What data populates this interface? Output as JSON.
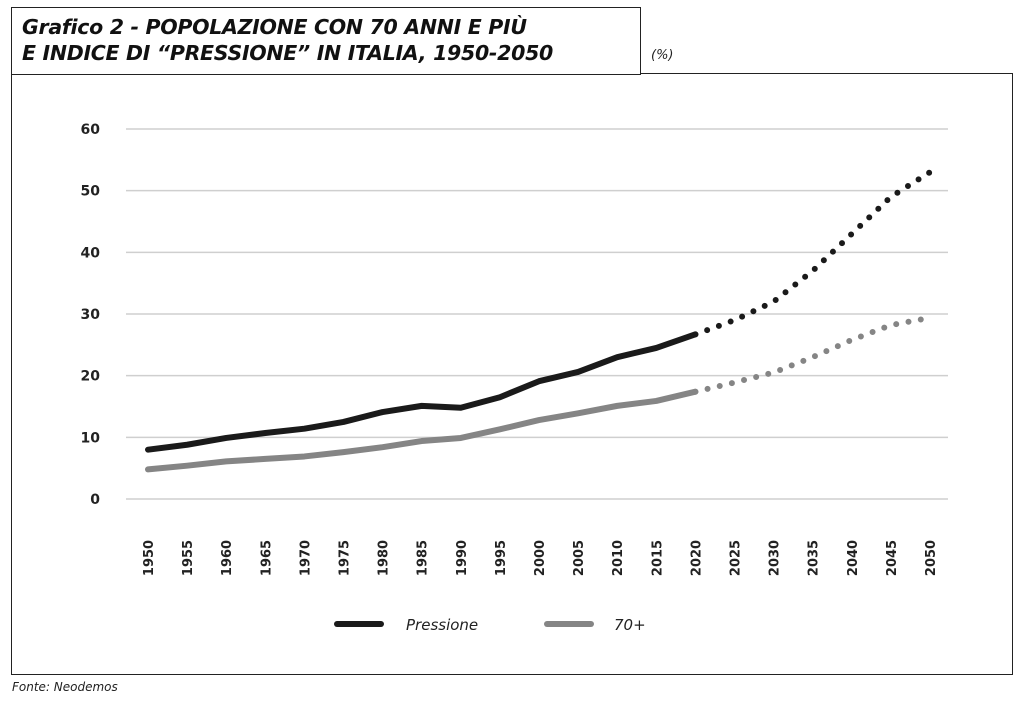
{
  "title_line1": "Grafico 2 - POPOLAZIONE CON 70 ANNI E PIÙ",
  "title_line2": "E INDICE DI “PRESSIONE” IN ITALIA, 1950-2050",
  "unit": "(%)",
  "source": "Fonte: Neodemos",
  "chart_data": {
    "type": "line",
    "title": "Grafico 2 - POPOLAZIONE CON 70 ANNI E PIÙ E INDICE DI “PRESSIONE” IN ITALIA, 1950-2050",
    "ylabel": "(%)",
    "ylim": [
      0,
      60
    ],
    "yticks": [
      0,
      10,
      20,
      30,
      40,
      50,
      60
    ],
    "x": [
      1950,
      1955,
      1960,
      1965,
      1970,
      1975,
      1980,
      1985,
      1990,
      1995,
      2000,
      2005,
      2010,
      2015,
      2020,
      2025,
      2030,
      2035,
      2040,
      2045,
      2050
    ],
    "projection_from": 2020,
    "grid": true,
    "legend_position": "bottom",
    "series": [
      {
        "name": "Pressione",
        "color": "#1a1a1a",
        "values": [
          8.0,
          8.8,
          9.9,
          10.7,
          11.4,
          12.5,
          14.1,
          15.1,
          14.8,
          16.5,
          19.1,
          20.6,
          23.0,
          24.5,
          26.7,
          29.0,
          32.0,
          37.0,
          43.0,
          49.0,
          53.0
        ]
      },
      {
        "name": "70+",
        "color": "#858585",
        "values": [
          4.8,
          5.4,
          6.1,
          6.5,
          6.9,
          7.6,
          8.4,
          9.4,
          9.9,
          11.3,
          12.8,
          13.9,
          15.1,
          15.9,
          17.4,
          18.9,
          20.5,
          23.0,
          25.8,
          28.2,
          29.4
        ]
      }
    ]
  }
}
